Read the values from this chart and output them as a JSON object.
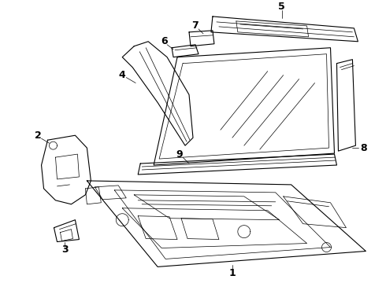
{
  "background_color": "#ffffff",
  "line_color": "#000000",
  "fig_width": 4.9,
  "fig_height": 3.6,
  "dpi": 100
}
